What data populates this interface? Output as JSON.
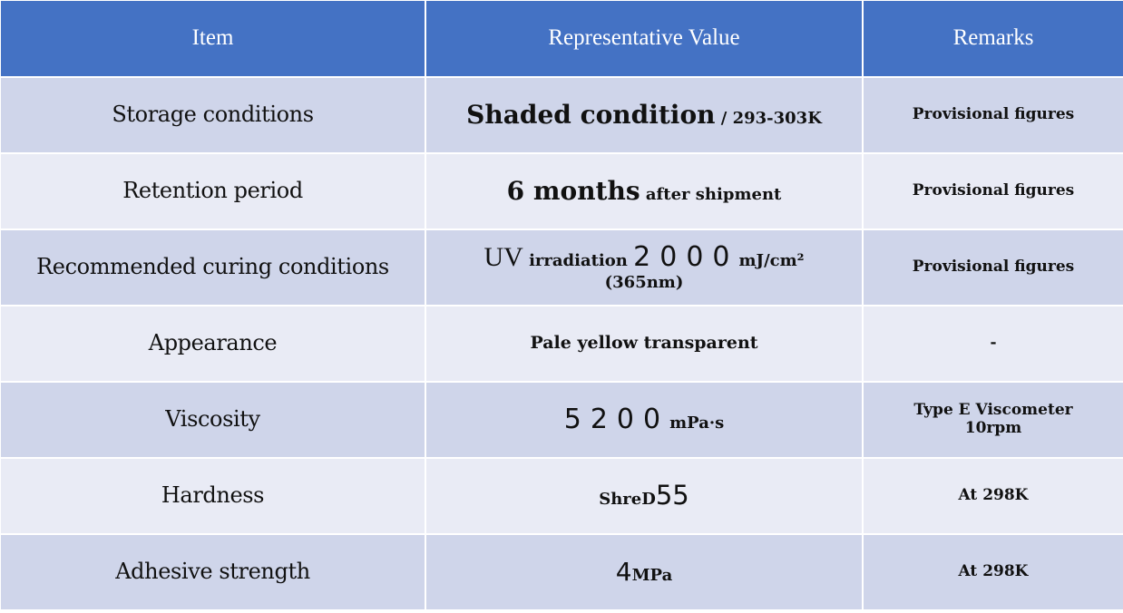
{
  "table": {
    "headers": {
      "item": "Item",
      "value": "Representative Value",
      "remarks": "Remarks"
    },
    "rows": [
      {
        "item": "Storage conditions",
        "value_main": "Shaded condition",
        "value_sub": " / 293-303K",
        "remark": "Provisional figures"
      },
      {
        "item": "Retention period",
        "value_main": "6 months",
        "value_sub": " after shipment",
        "remark": "Provisional figures"
      },
      {
        "item": "Recommended curing conditions",
        "value_prefix": "UV",
        "value_mid": " irradiation ",
        "value_num": "2000",
        "value_unit": "mJ/cm²",
        "value_line2": "(365nm)",
        "remark": "Provisional figures"
      },
      {
        "item": "Appearance",
        "value": "Pale yellow transparent",
        "remark": "-"
      },
      {
        "item": "Viscosity",
        "value_num": "5200",
        "value_unit": "mPa·s",
        "remark_line1": "Type E Viscometer",
        "remark_line2": "10rpm"
      },
      {
        "item": "Hardness",
        "value_prefix": "ShreD",
        "value_num": "55",
        "remark": "At 298K"
      },
      {
        "item": "Adhesive strength",
        "value_num": "4",
        "value_unit": "MPa",
        "remark": "At 298K"
      }
    ]
  }
}
